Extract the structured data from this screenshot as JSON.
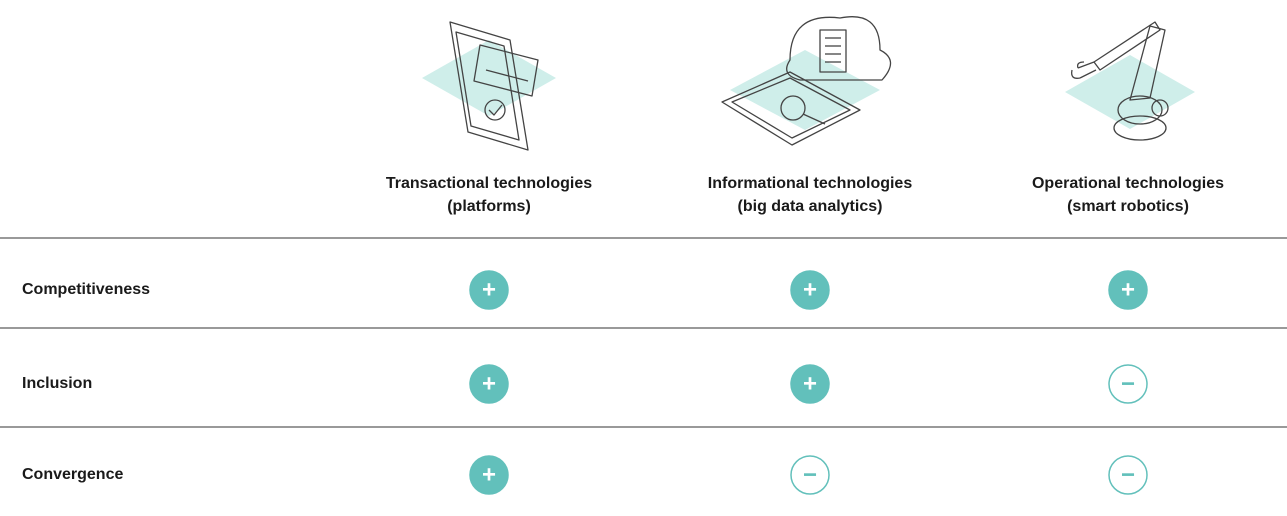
{
  "table": {
    "columns": [
      {
        "name": "Transactional technologies",
        "detail": "(platforms)"
      },
      {
        "name": "Informational technologies",
        "detail": "(big data analytics)"
      },
      {
        "name": "Operational technologies",
        "detail": "(smart robotics)"
      }
    ],
    "rows": [
      {
        "label": "Competitiveness",
        "cells": [
          "+",
          "+",
          "+"
        ]
      },
      {
        "label": "Inclusion",
        "cells": [
          "+",
          "+",
          "−"
        ]
      },
      {
        "label": "Convergence",
        "cells": [
          "+",
          "−",
          "−"
        ]
      }
    ]
  }
}
